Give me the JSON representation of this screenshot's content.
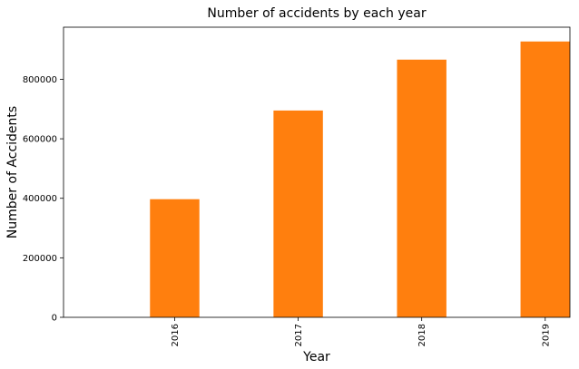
{
  "chart_data": {
    "type": "bar",
    "title": "Number of accidents by each year",
    "xlabel": "Year",
    "ylabel": "Number of Accidents",
    "categories": [
      "2016",
      "2017",
      "2018",
      "2019"
    ],
    "values": [
      397000,
      695000,
      866000,
      927000
    ],
    "ylim": [
      0,
      975000
    ],
    "yticks": [
      0,
      200000,
      400000,
      600000,
      800000
    ],
    "ytick_labels": [
      "0",
      "200000",
      "400000",
      "600000",
      "800000"
    ],
    "xtick_rotation": "vertical",
    "bar_color": "#ff7f0e",
    "grid": false,
    "legend": "none"
  }
}
